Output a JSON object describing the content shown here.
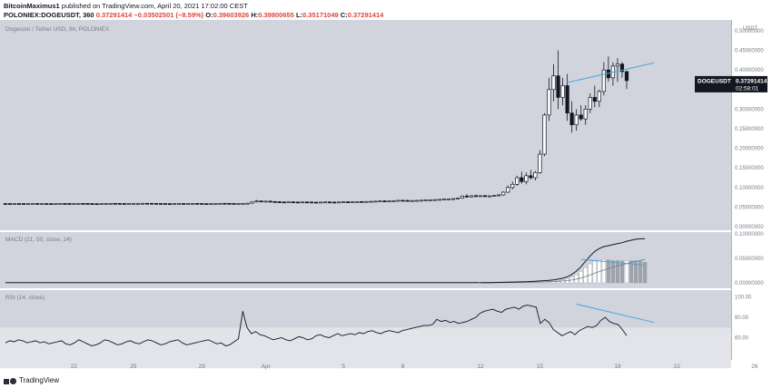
{
  "header": {
    "author": "BitcoinMaximus1",
    "published_text": "published on TradingView.com, April 20, 2021 17:02:00 CEST",
    "symbol_line": "POLONIEX:DOGEUSDT, 360",
    "price": "0.37291414",
    "change": "−0.03502501 (−8.59%)",
    "ohlc": {
      "o_label": "O:",
      "o": "0.39603926",
      "h_label": "H:",
      "h": "0.39800655",
      "l_label": "L:",
      "l": "0.35171049",
      "c_label": "C:",
      "c": "0.37291414"
    }
  },
  "footer": {
    "brand": "TradingView"
  },
  "colors": {
    "pane_bg": "#d1d4dc",
    "rsi_band": "#e2e4ea",
    "candle": "#131722",
    "trendline": "#4fa3e0",
    "hist": "#ffffff",
    "hist_falling": "#a0a3ab",
    "label_bg": "#131722"
  },
  "chart_data": {
    "type": "candlestick",
    "title": "Dogecoin / Tether USD, 6h, POLONIEX",
    "y_unit": "USDT",
    "ylim": [
      0,
      0.5
    ],
    "yticks": [
      "0.50000000",
      "0.45000000",
      "0.40000000",
      "0.35000000",
      "0.30000000",
      "0.25000000",
      "0.20000000",
      "0.15000000",
      "0.10000000",
      "0.05000000",
      "0.00000000"
    ],
    "price_label": {
      "symbol": "DOGEUSDT",
      "value": "0.37291414",
      "countdown": "02:58:01"
    },
    "x_ticks": [
      {
        "i": 15,
        "label": "22"
      },
      {
        "i": 28,
        "label": "25"
      },
      {
        "i": 43,
        "label": "29"
      },
      {
        "i": 57,
        "label": "Apr"
      },
      {
        "i": 74,
        "label": "5"
      },
      {
        "i": 87,
        "label": "8"
      },
      {
        "i": 104,
        "label": "12"
      },
      {
        "i": 117,
        "label": "15"
      },
      {
        "i": 134,
        "label": "19"
      },
      {
        "i": 147,
        "label": "22"
      },
      {
        "i": 164,
        "label": "26"
      }
    ],
    "candles": [
      [
        0.059,
        0.0592,
        0.0586,
        0.0589
      ],
      [
        0.0589,
        0.0591,
        0.0585,
        0.0588
      ],
      [
        0.0588,
        0.0592,
        0.0586,
        0.059
      ],
      [
        0.059,
        0.0593,
        0.0587,
        0.0589
      ],
      [
        0.0589,
        0.0592,
        0.0584,
        0.0587
      ],
      [
        0.0587,
        0.0591,
        0.0585,
        0.059
      ],
      [
        0.059,
        0.0594,
        0.0588,
        0.0592
      ],
      [
        0.0592,
        0.0595,
        0.0588,
        0.0589
      ],
      [
        0.0589,
        0.0592,
        0.0586,
        0.059
      ],
      [
        0.059,
        0.0593,
        0.0587,
        0.0588
      ],
      [
        0.0588,
        0.0591,
        0.0585,
        0.0587
      ],
      [
        0.0587,
        0.059,
        0.0584,
        0.0589
      ],
      [
        0.0589,
        0.0592,
        0.0586,
        0.0591
      ],
      [
        0.0591,
        0.0594,
        0.0588,
        0.059
      ],
      [
        0.059,
        0.0592,
        0.0586,
        0.0588
      ],
      [
        0.0588,
        0.0591,
        0.0585,
        0.059
      ],
      [
        0.059,
        0.0594,
        0.0588,
        0.0593
      ],
      [
        0.0593,
        0.0598,
        0.0589,
        0.0591
      ],
      [
        0.0591,
        0.0594,
        0.0587,
        0.0589
      ],
      [
        0.0589,
        0.0592,
        0.0584,
        0.0586
      ],
      [
        0.0586,
        0.0589,
        0.0582,
        0.0585
      ],
      [
        0.0585,
        0.059,
        0.0583,
        0.0588
      ],
      [
        0.0588,
        0.0593,
        0.0586,
        0.0591
      ],
      [
        0.0591,
        0.0595,
        0.0589,
        0.0594
      ],
      [
        0.0594,
        0.0597,
        0.059,
        0.0592
      ],
      [
        0.0592,
        0.0595,
        0.0588,
        0.059
      ],
      [
        0.059,
        0.0593,
        0.0586,
        0.0587
      ],
      [
        0.0587,
        0.0591,
        0.0585,
        0.0589
      ],
      [
        0.0589,
        0.0593,
        0.0587,
        0.0592
      ],
      [
        0.0592,
        0.0596,
        0.059,
        0.0594
      ],
      [
        0.0594,
        0.0598,
        0.0592,
        0.0596
      ],
      [
        0.0596,
        0.06,
        0.0593,
        0.0595
      ],
      [
        0.0595,
        0.0598,
        0.0591,
        0.0593
      ],
      [
        0.0593,
        0.0596,
        0.0589,
        0.0591
      ],
      [
        0.0591,
        0.0594,
        0.0587,
        0.059
      ],
      [
        0.059,
        0.0593,
        0.0586,
        0.0588
      ],
      [
        0.0588,
        0.0591,
        0.0584,
        0.0587
      ],
      [
        0.0587,
        0.059,
        0.0583,
        0.0589
      ],
      [
        0.0589,
        0.0592,
        0.0586,
        0.0591
      ],
      [
        0.0591,
        0.0594,
        0.0588,
        0.059
      ],
      [
        0.059,
        0.0593,
        0.0587,
        0.0592
      ],
      [
        0.0592,
        0.0595,
        0.0589,
        0.0593
      ],
      [
        0.0593,
        0.0596,
        0.0589,
        0.0591
      ],
      [
        0.0591,
        0.0594,
        0.0587,
        0.0589
      ],
      [
        0.0589,
        0.0592,
        0.0585,
        0.0588
      ],
      [
        0.0588,
        0.0591,
        0.0585,
        0.059
      ],
      [
        0.059,
        0.0594,
        0.0588,
        0.0593
      ],
      [
        0.0593,
        0.0597,
        0.059,
        0.0595
      ],
      [
        0.0595,
        0.0598,
        0.0591,
        0.0594
      ],
      [
        0.0594,
        0.0597,
        0.059,
        0.0592
      ],
      [
        0.0592,
        0.0595,
        0.0588,
        0.059
      ],
      [
        0.059,
        0.0593,
        0.0586,
        0.0591
      ],
      [
        0.0591,
        0.0595,
        0.0588,
        0.0594
      ],
      [
        0.0594,
        0.06,
        0.0591,
        0.0598
      ],
      [
        0.0598,
        0.064,
        0.0596,
        0.063
      ],
      [
        0.063,
        0.068,
        0.0618,
        0.0655
      ],
      [
        0.0655,
        0.067,
        0.0628,
        0.0642
      ],
      [
        0.0642,
        0.066,
        0.063,
        0.065
      ],
      [
        0.065,
        0.0665,
        0.0636,
        0.064
      ],
      [
        0.064,
        0.0652,
        0.0628,
        0.0635
      ],
      [
        0.0635,
        0.0648,
        0.0626,
        0.063
      ],
      [
        0.063,
        0.0642,
        0.062,
        0.0625
      ],
      [
        0.0625,
        0.0638,
        0.0618,
        0.0632
      ],
      [
        0.0632,
        0.0645,
        0.0624,
        0.0628
      ],
      [
        0.0628,
        0.064,
        0.062,
        0.0626
      ],
      [
        0.0626,
        0.0638,
        0.0618,
        0.063
      ],
      [
        0.063,
        0.0642,
        0.0622,
        0.0628
      ],
      [
        0.0628,
        0.064,
        0.062,
        0.0624
      ],
      [
        0.0624,
        0.0636,
        0.0616,
        0.0622
      ],
      [
        0.0622,
        0.0634,
        0.0615,
        0.0627
      ],
      [
        0.0627,
        0.0639,
        0.0619,
        0.063
      ],
      [
        0.063,
        0.0642,
        0.0622,
        0.0626
      ],
      [
        0.0626,
        0.0638,
        0.0618,
        0.0624
      ],
      [
        0.0624,
        0.0636,
        0.0616,
        0.0629
      ],
      [
        0.0629,
        0.0641,
        0.0621,
        0.0633
      ],
      [
        0.0633,
        0.0645,
        0.0625,
        0.063
      ],
      [
        0.063,
        0.0642,
        0.0622,
        0.0635
      ],
      [
        0.0635,
        0.0648,
        0.0627,
        0.064
      ],
      [
        0.064,
        0.0652,
        0.0631,
        0.0637
      ],
      [
        0.0637,
        0.065,
        0.0629,
        0.0642
      ],
      [
        0.0642,
        0.0655,
        0.0634,
        0.0646
      ],
      [
        0.0646,
        0.066,
        0.0638,
        0.065
      ],
      [
        0.065,
        0.0664,
        0.0641,
        0.0656
      ],
      [
        0.0656,
        0.067,
        0.0645,
        0.0652
      ],
      [
        0.0652,
        0.0665,
        0.064,
        0.0655
      ],
      [
        0.0655,
        0.0668,
        0.0646,
        0.066
      ],
      [
        0.066,
        0.068,
        0.0651,
        0.0672
      ],
      [
        0.0672,
        0.069,
        0.066,
        0.0668
      ],
      [
        0.0668,
        0.0682,
        0.0655,
        0.0663
      ],
      [
        0.0663,
        0.0676,
        0.0652,
        0.0666
      ],
      [
        0.0666,
        0.068,
        0.0656,
        0.067
      ],
      [
        0.067,
        0.0684,
        0.066,
        0.0675
      ],
      [
        0.0675,
        0.069,
        0.0664,
        0.068
      ],
      [
        0.068,
        0.0695,
        0.0668,
        0.0685
      ],
      [
        0.0685,
        0.07,
        0.0672,
        0.069
      ],
      [
        0.069,
        0.0705,
        0.0676,
        0.0696
      ],
      [
        0.0696,
        0.0712,
        0.0682,
        0.0702
      ],
      [
        0.0702,
        0.072,
        0.0688,
        0.0708
      ],
      [
        0.0708,
        0.0726,
        0.0694,
        0.0715
      ],
      [
        0.0715,
        0.074,
        0.07,
        0.0725
      ],
      [
        0.0725,
        0.08,
        0.0715,
        0.078
      ],
      [
        0.078,
        0.083,
        0.074,
        0.076
      ],
      [
        0.076,
        0.08,
        0.074,
        0.079
      ],
      [
        0.079,
        0.082,
        0.076,
        0.0775
      ],
      [
        0.0775,
        0.08,
        0.0755,
        0.079
      ],
      [
        0.079,
        0.081,
        0.0765,
        0.078
      ],
      [
        0.078,
        0.08,
        0.076,
        0.0785
      ],
      [
        0.0785,
        0.0805,
        0.077,
        0.08
      ],
      [
        0.08,
        0.083,
        0.078,
        0.081
      ],
      [
        0.081,
        0.09,
        0.079,
        0.088
      ],
      [
        0.088,
        0.105,
        0.086,
        0.1
      ],
      [
        0.1,
        0.115,
        0.095,
        0.108
      ],
      [
        0.108,
        0.13,
        0.104,
        0.125
      ],
      [
        0.125,
        0.14,
        0.11,
        0.115
      ],
      [
        0.115,
        0.138,
        0.108,
        0.13
      ],
      [
        0.13,
        0.145,
        0.12,
        0.125
      ],
      [
        0.125,
        0.142,
        0.118,
        0.138
      ],
      [
        0.138,
        0.195,
        0.135,
        0.185
      ],
      [
        0.185,
        0.29,
        0.18,
        0.285
      ],
      [
        0.285,
        0.38,
        0.27,
        0.35
      ],
      [
        0.35,
        0.415,
        0.32,
        0.385
      ],
      [
        0.385,
        0.45,
        0.3,
        0.33
      ],
      [
        0.33,
        0.38,
        0.31,
        0.36
      ],
      [
        0.36,
        0.39,
        0.27,
        0.29
      ],
      [
        0.29,
        0.32,
        0.24,
        0.26
      ],
      [
        0.26,
        0.3,
        0.245,
        0.285
      ],
      [
        0.285,
        0.31,
        0.27,
        0.275
      ],
      [
        0.275,
        0.31,
        0.26,
        0.3
      ],
      [
        0.3,
        0.34,
        0.29,
        0.33
      ],
      [
        0.33,
        0.36,
        0.305,
        0.32
      ],
      [
        0.32,
        0.35,
        0.305,
        0.345
      ],
      [
        0.345,
        0.42,
        0.335,
        0.4
      ],
      [
        0.4,
        0.435,
        0.37,
        0.38
      ],
      [
        0.38,
        0.42,
        0.36,
        0.41
      ],
      [
        0.41,
        0.43,
        0.37,
        0.415
      ],
      [
        0.415,
        0.42,
        0.38,
        0.396
      ],
      [
        0.396,
        0.398,
        0.3517,
        0.3729
      ]
    ],
    "macd": {
      "label": "MACD (21, 50, close, 24)",
      "yticks": [
        "0.10000000",
        "0.05000000",
        "0.00000000"
      ],
      "ylim": [
        0,
        0.1
      ],
      "macd_line": [
        0.00045,
        0.0005,
        0.0006,
        0.0007,
        0.0009,
        0.0012,
        0.0014,
        0.0016,
        0.0018,
        0.0021,
        0.0024,
        0.0028,
        0.0033,
        0.0038,
        0.0044,
        0.0052,
        0.0062,
        0.0075,
        0.0095,
        0.0125,
        0.017,
        0.024,
        0.033,
        0.044,
        0.055,
        0.064,
        0.07,
        0.074,
        0.076,
        0.078,
        0.08,
        0.082,
        0.085,
        0.087,
        0.089,
        0.09,
        0.09
      ],
      "signal_line": [
        0.0003,
        0.0003,
        0.0004,
        0.0004,
        0.0005,
        0.0006,
        0.0007,
        0.0008,
        0.0009,
        0.001,
        0.0011,
        0.0013,
        0.0015,
        0.0017,
        0.002,
        0.0023,
        0.0027,
        0.0032,
        0.0038,
        0.0046,
        0.0058,
        0.0075,
        0.0098,
        0.0127,
        0.0161,
        0.0196,
        0.023,
        0.0262,
        0.0292,
        0.032,
        0.0345,
        0.037,
        0.0395,
        0.0418,
        0.044,
        0.046,
        0.0478
      ],
      "histogram": [
        0.0002,
        0.0002,
        0.0002,
        0.0003,
        0.0004,
        0.0006,
        0.0007,
        0.0008,
        0.0009,
        0.0011,
        0.0013,
        0.0015,
        0.0018,
        0.0021,
        0.0024,
        0.0029,
        0.0035,
        0.0043,
        0.0057,
        0.0079,
        0.0112,
        0.0165,
        0.0232,
        0.0313,
        0.0389,
        0.0444,
        0.047,
        0.0478,
        0.0468,
        0.046,
        0.0455,
        0.045,
        0.0455,
        0.0452,
        0.045,
        0.044,
        0.0422
      ],
      "start_index": 104
    },
    "rsi": {
      "label": "RSI (14, close)",
      "yticks": [
        "100.00",
        "80.00",
        "60.00"
      ],
      "ylim": [
        40,
        105
      ],
      "band": [
        30,
        70
      ],
      "values": [
        55,
        57,
        56,
        58,
        57,
        55,
        56,
        57,
        55,
        56,
        54,
        55,
        56,
        57,
        54,
        53,
        55,
        58,
        56,
        54,
        52,
        53,
        55,
        58,
        57,
        55,
        53,
        54,
        56,
        57,
        55,
        54,
        56,
        58,
        57,
        55,
        53,
        54,
        56,
        57,
        58,
        55,
        53,
        54,
        55,
        56,
        57,
        58,
        56,
        54,
        55,
        52,
        53,
        56,
        59,
        86,
        70,
        64,
        66,
        63,
        62,
        60,
        58,
        59,
        60,
        58,
        57,
        59,
        61,
        60,
        58,
        59,
        62,
        63,
        61,
        60,
        62,
        64,
        62,
        63,
        64,
        63,
        65,
        64,
        66,
        67,
        65,
        64,
        66,
        67,
        66,
        65,
        67,
        68,
        69,
        70,
        71,
        72,
        72,
        73,
        78,
        76,
        77,
        75,
        76,
        74,
        75,
        76,
        78,
        80,
        84,
        86,
        87,
        88,
        86,
        85,
        88,
        89,
        90,
        88,
        91,
        92,
        91,
        90,
        74,
        78,
        75,
        68,
        65,
        62,
        64,
        66,
        63,
        67,
        69,
        71,
        70,
        72,
        77,
        80,
        76,
        74,
        73,
        68,
        62
      ]
    },
    "trendlines": [
      {
        "pane": "price",
        "from": [
          123,
          0.368
        ],
        "to": [
          142,
          0.418
        ]
      },
      {
        "pane": "macd",
        "from": [
          126,
          0.048
        ],
        "to": [
          140,
          0.036
        ]
      },
      {
        "pane": "rsi",
        "from": [
          125,
          93
        ],
        "to": [
          142,
          75
        ]
      }
    ]
  }
}
